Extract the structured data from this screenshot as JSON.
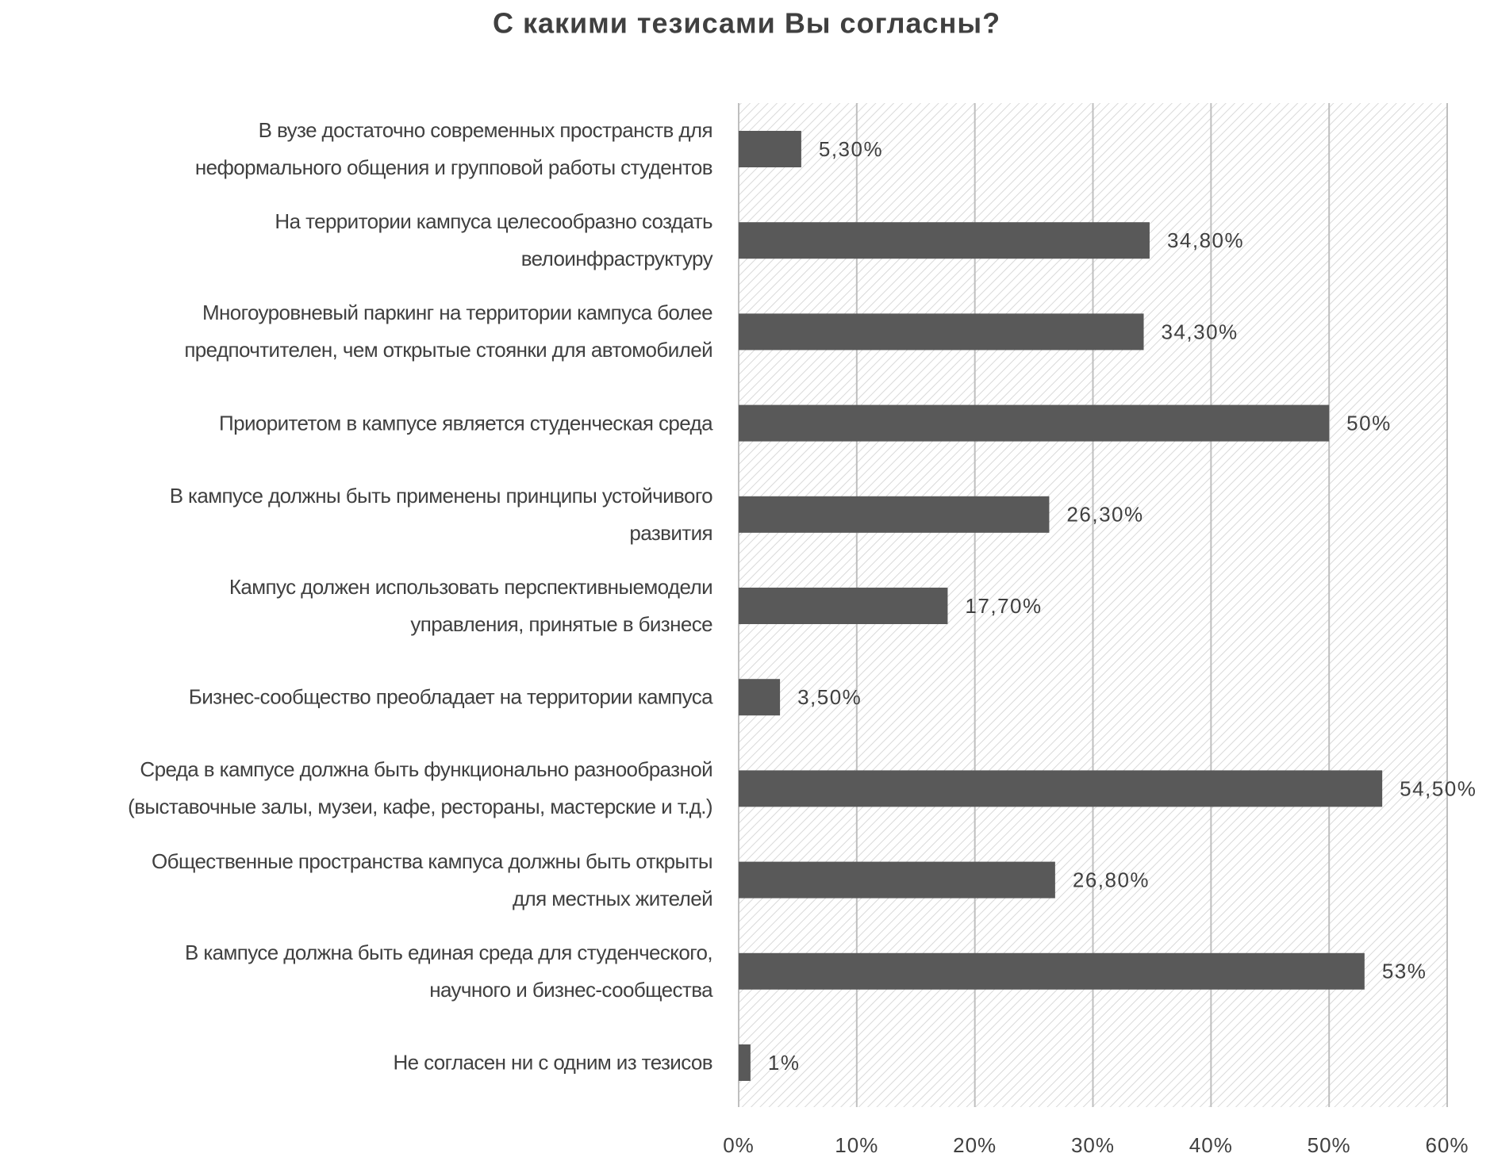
{
  "chart_data": {
    "type": "barh",
    "title": "С какими тезисами Вы согласны?",
    "categories": [
      "В вузе достаточно современных пространств для\nнеформального общения и групповой работы студентов",
      "На территории кампуса целесообразно создать\nвелоинфраструктуру",
      "Многоуровневый паркинг на территории кампуса более\nпредпочтителен, чем открытые стоянки для автомобилей",
      "Приоритетом в кампусе является студенческая среда",
      "В кампусе должны быть применены принципы устойчивого\nразвития",
      "Кампус должен использовать перспективныемодели\nуправления, принятые в бизнесе",
      "Бизнес-сообщество преобладает на территории кампуса",
      "Среда в кампусе должна быть функционально разнообразной\n(выставочные залы, музеи, кафе, рестораны, мастерские и т.д.)",
      "Общественные пространства кампуса должны быть открыты\nдля местных жителей",
      "В кампусе должна быть единая среда для студенческого,\nнаучного и бизнес-сообщества",
      "Не согласен ни с одним из тезисов"
    ],
    "values": [
      5.3,
      34.8,
      34.3,
      50,
      26.3,
      17.7,
      3.5,
      54.5,
      26.8,
      53,
      1
    ],
    "value_labels": [
      "5,30%",
      "34,80%",
      "34,30%",
      "50%",
      "26,30%",
      "17,70%",
      "3,50%",
      "54,50%",
      "26,80%",
      "53%",
      "1%"
    ],
    "color": "#595959",
    "xlim": [
      0,
      60
    ],
    "xticks": [
      {
        "value": 0,
        "label": "0%"
      },
      {
        "value": 10,
        "label": "10%"
      },
      {
        "value": 20,
        "label": "20%"
      },
      {
        "value": 30,
        "label": "30%"
      },
      {
        "value": 40,
        "label": "40%"
      },
      {
        "value": 50,
        "label": "50%"
      },
      {
        "value": 60,
        "label": "60%"
      }
    ],
    "grid": true
  }
}
